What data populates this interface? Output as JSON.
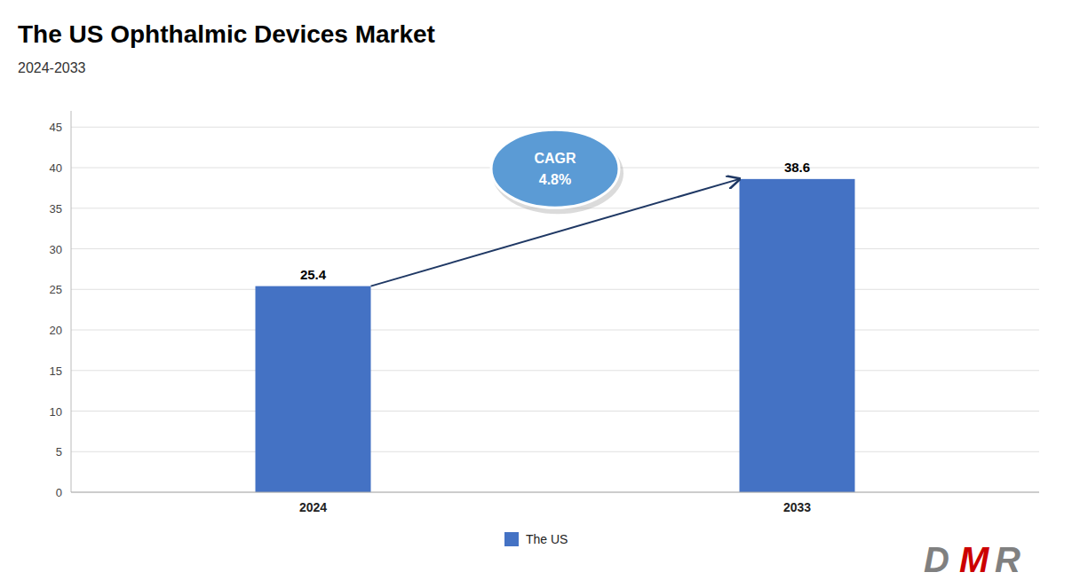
{
  "chart_data": {
    "type": "bar",
    "title": "The US Ophthalmic Devices Market",
    "subtitle": "2024-2033",
    "categories": [
      "2024",
      "2033"
    ],
    "series": [
      {
        "name": "The US",
        "color": "#4472C4",
        "values": [
          25.4,
          38.6
        ]
      }
    ],
    "ylim": [
      0,
      47
    ],
    "yticks": [
      0,
      5,
      10,
      15,
      20,
      25,
      30,
      35,
      40,
      45
    ],
    "grid": true,
    "legend": "bottom",
    "data_labels": true,
    "annotations": [
      "CAGR",
      "4.8%",
      "D",
      "M",
      "R"
    ]
  }
}
